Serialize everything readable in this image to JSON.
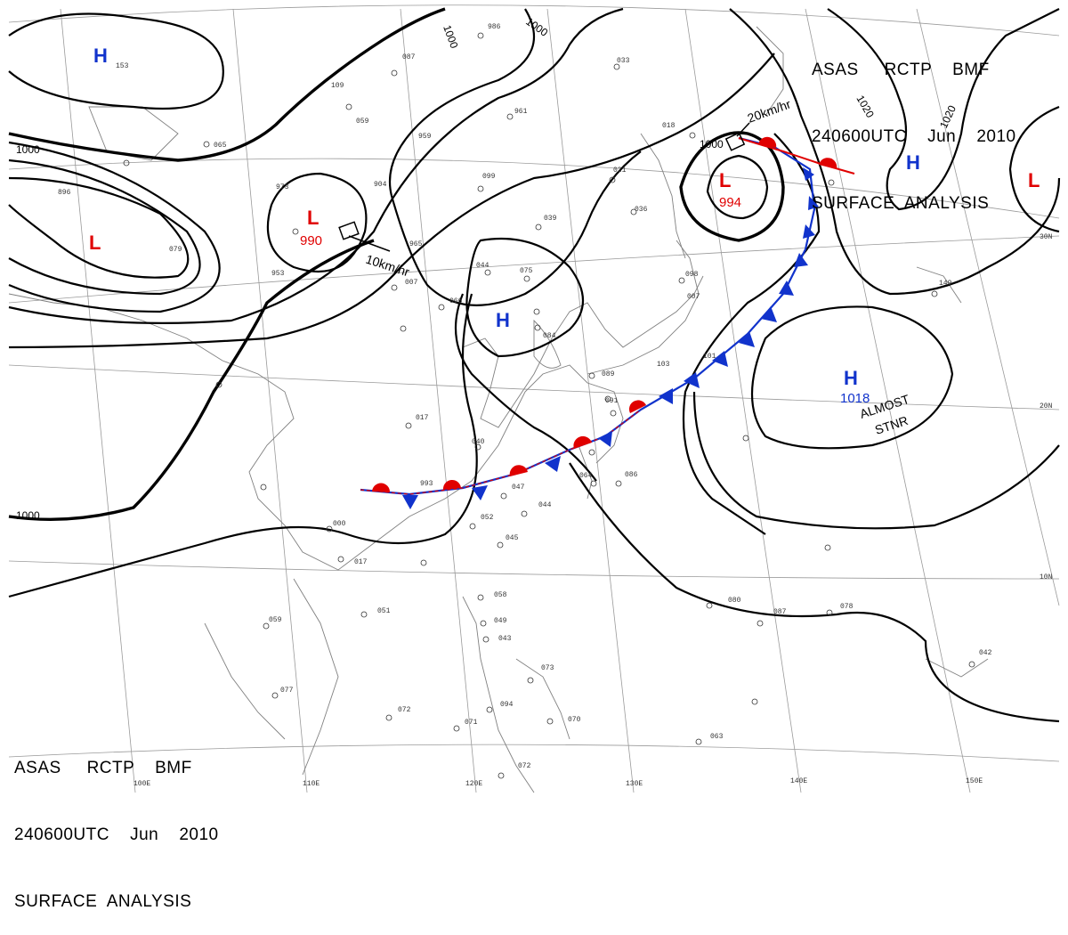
{
  "header_top": {
    "line1": "ASAS     RCTP    BMF",
    "line2": "240600UTC    Jun    2010",
    "line3": "SURFACE  ANALYSIS"
  },
  "header_bottom": {
    "line1": "ASAS     RCTP    BMF",
    "line2": "240600UTC    Jun    2010",
    "line3": "SURFACE  ANALYSIS"
  },
  "longitude_labels": [
    "100E",
    "110E",
    "120E",
    "130E",
    "140E",
    "150E"
  ],
  "latitude_labels": [
    "30N",
    "20N",
    "10N"
  ],
  "isobar_labels": [
    "1000",
    "1000",
    "1000",
    "1000",
    "1020",
    "1020",
    "1000"
  ],
  "pressure_systems": [
    {
      "type": "H",
      "value": "",
      "color": "#1133cc"
    },
    {
      "type": "L",
      "value": "",
      "color": "#e00000"
    },
    {
      "type": "L",
      "value": "990",
      "color": "#e00000"
    },
    {
      "type": "L",
      "value": "994",
      "color": "#e00000"
    },
    {
      "type": "H",
      "value": "",
      "color": "#1133cc"
    },
    {
      "type": "L",
      "value": "",
      "color": "#e00000"
    },
    {
      "type": "H",
      "value": "",
      "color": "#1133cc"
    },
    {
      "type": "H",
      "value": "1018",
      "color": "#1133cc"
    }
  ],
  "motion_labels": [
    "10km/hr",
    "20km/hr"
  ],
  "annotation": {
    "line1": "ALMOST",
    "line2": "STNR"
  },
  "station_values": [
    "153",
    "087",
    "109",
    "059",
    "065",
    "959",
    "904",
    "965",
    "973",
    "986",
    "961",
    "099",
    "033",
    "018",
    "021",
    "036",
    "039",
    "044",
    "075",
    "066",
    "007",
    "953",
    "896",
    "079",
    "017",
    "040",
    "993",
    "047",
    "052",
    "045",
    "044",
    "064",
    "086",
    "091",
    "089",
    "103",
    "101",
    "098",
    "007",
    "149",
    "000",
    "017",
    "051",
    "059",
    "058",
    "049",
    "043",
    "073",
    "094",
    "072",
    "071",
    "070",
    "063",
    "072",
    "077",
    "080",
    "087",
    "078",
    "042",
    "084"
  ],
  "colors": {
    "isobar": "#000000",
    "cold_front": "#1133cc",
    "warm_front": "#e00000",
    "low": "#e00000",
    "high": "#1133cc",
    "coast": "#808080",
    "graticule": "#9a9a9a"
  }
}
